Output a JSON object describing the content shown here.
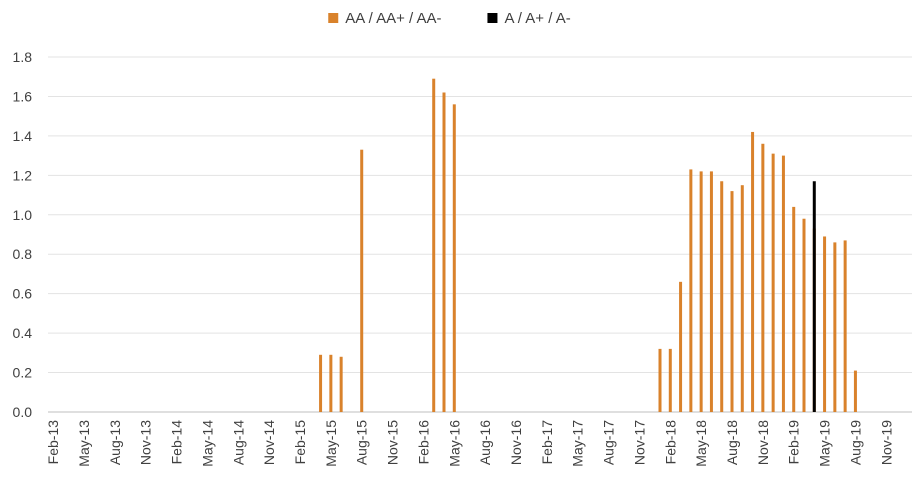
{
  "chart_data": {
    "type": "bar",
    "title": "",
    "xlabel": "",
    "ylabel": "",
    "ylim": [
      0,
      1.8
    ],
    "y_ticks": [
      "0.0",
      "0.2",
      "0.4",
      "0.6",
      "0.8",
      "1.0",
      "1.2",
      "1.4",
      "1.6",
      "1.8"
    ],
    "x_tick_labels": [
      "Feb-13",
      "May-13",
      "Aug-13",
      "Nov-13",
      "Feb-14",
      "May-14",
      "Aug-14",
      "Nov-14",
      "Feb-15",
      "May-15",
      "Aug-15",
      "Nov-15",
      "Feb-16",
      "May-16",
      "Aug-16",
      "Nov-16",
      "Feb-17",
      "May-17",
      "Aug-17",
      "Nov-17",
      "Feb-18",
      "May-18",
      "Aug-18",
      "Nov-18",
      "Feb-19",
      "May-19",
      "Aug-19",
      "Nov-19"
    ],
    "x_range": [
      "Feb-13",
      "Jan-20"
    ],
    "grid": "horizontal",
    "legend_position": "top-center",
    "series": [
      {
        "name": "AA / AA+ / AA-",
        "color": "#D9822B",
        "points": [
          {
            "x": "Apr-15",
            "y": 0.29
          },
          {
            "x": "May-15",
            "y": 0.29
          },
          {
            "x": "Jun-15",
            "y": 0.28
          },
          {
            "x": "Aug-15",
            "y": 1.33
          },
          {
            "x": "Mar-16",
            "y": 1.69
          },
          {
            "x": "Apr-16",
            "y": 1.62
          },
          {
            "x": "May-16",
            "y": 1.56
          },
          {
            "x": "Jan-18",
            "y": 0.32
          },
          {
            "x": "Feb-18",
            "y": 0.32
          },
          {
            "x": "Mar-18",
            "y": 0.66
          },
          {
            "x": "Apr-18",
            "y": 1.23
          },
          {
            "x": "May-18",
            "y": 1.22
          },
          {
            "x": "Jun-18",
            "y": 1.22
          },
          {
            "x": "Jul-18",
            "y": 1.17
          },
          {
            "x": "Aug-18",
            "y": 1.12
          },
          {
            "x": "Sep-18",
            "y": 1.15
          },
          {
            "x": "Oct-18",
            "y": 1.42
          },
          {
            "x": "Nov-18",
            "y": 1.36
          },
          {
            "x": "Dec-18",
            "y": 1.31
          },
          {
            "x": "Jan-19",
            "y": 1.3
          },
          {
            "x": "Feb-19",
            "y": 1.04
          },
          {
            "x": "Mar-19",
            "y": 0.98
          },
          {
            "x": "Apr-19",
            "y": 0.93
          },
          {
            "x": "May-19",
            "y": 0.89
          },
          {
            "x": "Jun-19",
            "y": 0.86
          },
          {
            "x": "Jul-19",
            "y": 0.87
          },
          {
            "x": "Aug-19",
            "y": 0.21
          }
        ]
      },
      {
        "name": "A / A+ / A-",
        "color": "#000000",
        "points": [
          {
            "x": "Apr-19",
            "y": 1.17
          }
        ]
      }
    ]
  }
}
